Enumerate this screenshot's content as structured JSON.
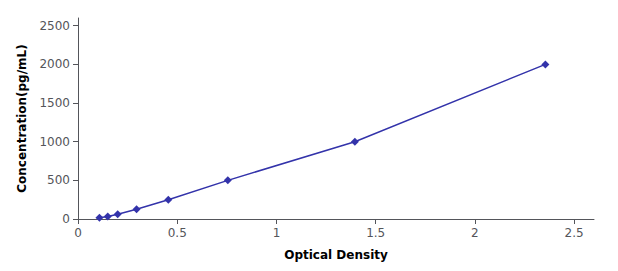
{
  "chart_data": {
    "type": "line",
    "x": [
      0.108,
      0.15,
      0.2,
      0.295,
      0.455,
      0.755,
      1.395,
      2.355
    ],
    "values": [
      15.6,
      31.25,
      62.5,
      125,
      250,
      500,
      1000,
      2000
    ],
    "color": "#3333aa",
    "marker": "diamond",
    "line_style": "solid",
    "xlabel": "Optical Density",
    "ylabel": "Concentration(pg/mL)",
    "xlim": [
      0.0,
      2.6
    ],
    "ylim": [
      0,
      2600
    ],
    "xticks": [
      0,
      0.5,
      1,
      1.5,
      2,
      2.5
    ],
    "yticks": [
      0,
      500,
      1000,
      1500,
      2000,
      2500
    ],
    "grid": false
  }
}
